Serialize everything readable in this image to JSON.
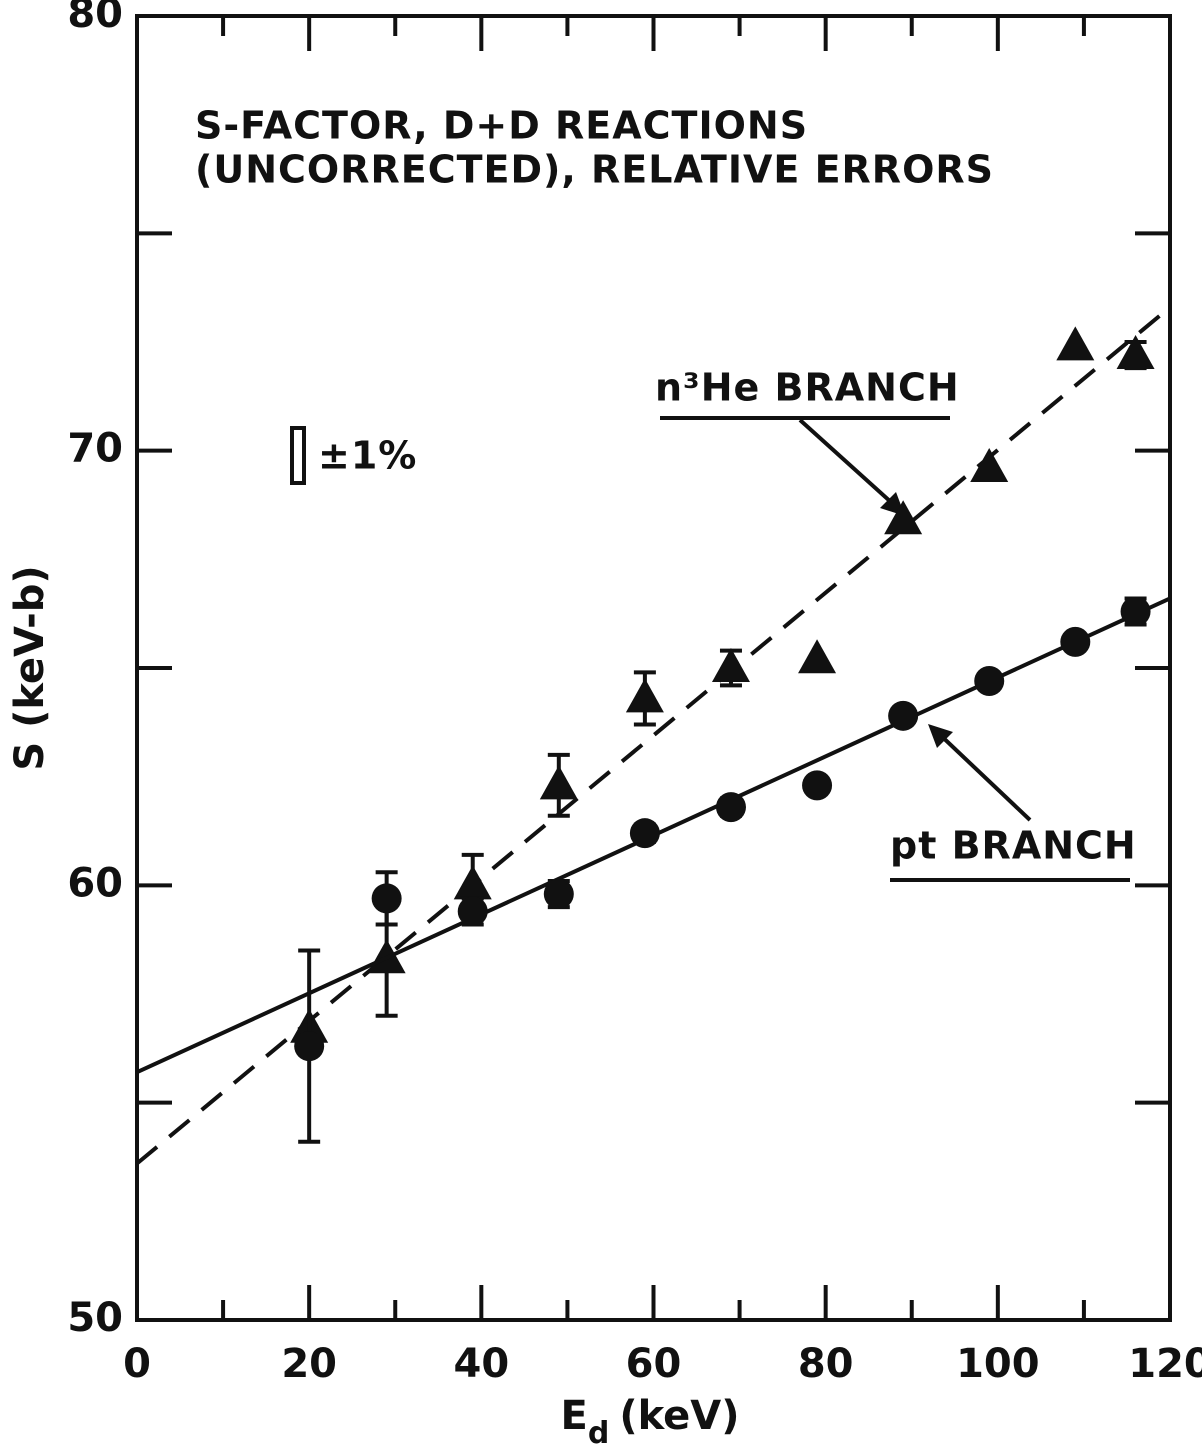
{
  "chart_data": {
    "type": "scatter",
    "title": [
      "S-FACTOR, D+D REACTIONS",
      "(UNCORRECTED), RELATIVE ERRORS"
    ],
    "xlabel": [
      "E",
      "d",
      "(keV)"
    ],
    "ylabel": "S (keV-b)",
    "scale_note": "±1%",
    "xlim": [
      0,
      120
    ],
    "ylim": [
      50,
      80
    ],
    "xticks": [
      0,
      20,
      40,
      60,
      80,
      100,
      120
    ],
    "yticks": [
      50,
      60,
      70,
      80
    ],
    "xminor": [
      10,
      30,
      50,
      70,
      90,
      110
    ],
    "yminor": [
      55,
      65,
      75
    ],
    "series": [
      {
        "name": "n³He BRANCH",
        "marker": "triangle",
        "color": "#111",
        "line": "dashed",
        "x": [
          20,
          29,
          39,
          49,
          59,
          69,
          79,
          89,
          99,
          109,
          116
        ],
        "values": [
          56.7,
          58.3,
          60.0,
          62.3,
          64.3,
          65.0,
          65.2,
          68.4,
          69.6,
          72.4,
          72.2
        ],
        "errors": [
          null,
          1.3,
          0.7,
          0.7,
          0.6,
          0.4,
          null,
          null,
          null,
          null,
          0.3
        ],
        "fit_x": [
          0,
          120
        ],
        "fit_y": [
          53.6,
          73.3
        ]
      },
      {
        "name": "pt BRANCH",
        "marker": "circle",
        "color": "#111",
        "line": "solid",
        "x": [
          20,
          29,
          39,
          49,
          59,
          69,
          79,
          89,
          99,
          109,
          116
        ],
        "values": [
          56.3,
          59.7,
          59.4,
          59.8,
          61.2,
          61.8,
          62.3,
          63.9,
          64.7,
          65.6,
          66.3
        ],
        "errors": [
          2.2,
          0.6,
          0.3,
          0.3,
          0.2,
          0.2,
          null,
          null,
          null,
          null,
          0.3
        ],
        "fit_x": [
          0,
          120
        ],
        "fit_y": [
          55.7,
          66.6
        ]
      }
    ]
  }
}
